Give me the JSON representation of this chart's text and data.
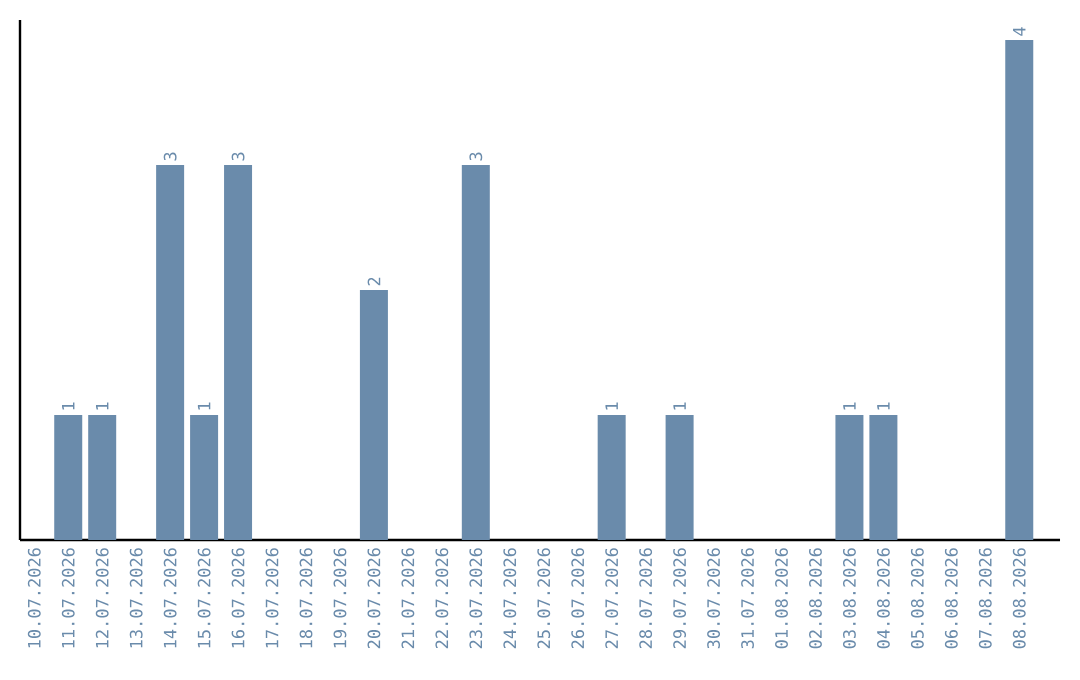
{
  "chart_data": {
    "type": "bar",
    "categories": [
      "10.07.2026",
      "11.07.2026",
      "12.07.2026",
      "13.07.2026",
      "14.07.2026",
      "15.07.2026",
      "16.07.2026",
      "17.07.2026",
      "18.07.2026",
      "19.07.2026",
      "20.07.2026",
      "21.07.2026",
      "22.07.2026",
      "23.07.2026",
      "24.07.2026",
      "25.07.2026",
      "26.07.2026",
      "27.07.2026",
      "28.07.2026",
      "29.07.2026",
      "30.07.2026",
      "31.07.2026",
      "01.08.2026",
      "02.08.2026",
      "03.08.2026",
      "04.08.2026",
      "05.08.2026",
      "06.08.2026",
      "07.08.2026",
      "08.08.2026"
    ],
    "values": [
      0,
      1,
      1,
      0,
      3,
      1,
      3,
      0,
      0,
      0,
      2,
      0,
      0,
      3,
      0,
      0,
      0,
      1,
      0,
      1,
      0,
      0,
      0,
      0,
      1,
      1,
      0,
      0,
      0,
      4
    ],
    "value_labels": [
      null,
      "1",
      "1",
      null,
      "3",
      "1",
      "3",
      null,
      null,
      null,
      "2",
      null,
      null,
      "3",
      null,
      null,
      null,
      "1",
      null,
      "1",
      null,
      null,
      null,
      null,
      "1",
      "1",
      null,
      null,
      null,
      "4"
    ],
    "color": "#6a8bab",
    "ylim": [
      0,
      4.16
    ],
    "tick_labels": "x"
  }
}
